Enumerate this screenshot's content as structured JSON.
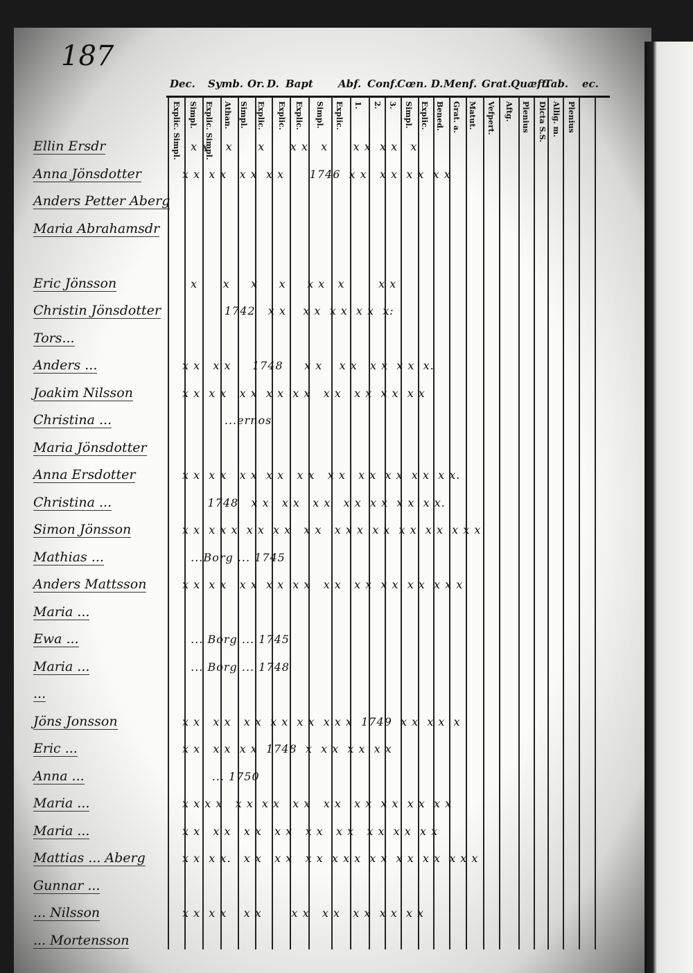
{
  "page_number": "187",
  "header": {
    "groups": [
      "Dec.",
      "Symb.",
      "Or.",
      "D.",
      "Bapt",
      "Abf.",
      "Conf.",
      "Cœn. D.",
      "Menf.",
      "Grat.",
      "Quæft.",
      "Tab.",
      "ec."
    ],
    "subcolumns": [
      "Explic. Simpl.",
      "Simpl.",
      "Explic. Simpl.",
      "Athan.",
      "Simpl.",
      "Explic.",
      "Explic.",
      "Explic.",
      "Simpl.",
      "Explic.",
      "1.",
      "2.",
      "3.",
      "Simpl.",
      "Explic.",
      "Bened.",
      "Grat. a.",
      "Matut.",
      "Vefpert.",
      "Aftg.",
      "Plenius",
      "Dicta S.S.",
      "Allig. m.",
      "Plenius"
    ]
  },
  "rows": [
    {
      "name": "Ellin Ersdr",
      "marks": "  x x    x      x      x x   x      x x  x x   x"
    },
    {
      "name": "Anna Jönsdotter",
      "marks": "x x  x x   x x  x x      1746  x x   x x  x x  x x"
    },
    {
      "name": "Anders Petter Aberg",
      "marks": ""
    },
    {
      "name": "Maria Abrahamsdr",
      "marks": ""
    },
    {
      "name": "",
      "marks": ""
    },
    {
      "name": "Eric Jönsson",
      "marks": "  x      x     x     x     x x   x        x x"
    },
    {
      "name": "Christin Jönsdotter",
      "marks": "          1742   x x    x x  x x  x x  x:"
    },
    {
      "name": "Tors...",
      "marks": ""
    },
    {
      "name": "Anders ...",
      "marks": "x x   x x     1748     x x    x x   x x  x x  x."
    },
    {
      "name": "Joakim Nilsson",
      "marks": "x x  x x   x x  x x  x x   x x   x x  x x  x x"
    },
    {
      "name": "Christina ...",
      "marks": "          ...ernos"
    },
    {
      "name": "Maria Jönsdotter",
      "marks": ""
    },
    {
      "name": "Anna Ersdotter",
      "marks": "x x  x x   x x  x x   x x   x x   x x  x x  x x  x x."
    },
    {
      "name": "Christina ...",
      "marks": "      1748   x x   x x   x x   x x  x x  x x  x x."
    },
    {
      "name": "Simon Jönsson",
      "marks": "x x  x x x  x x  x x   x x   x x x  x x  x x  x x  x x x"
    },
    {
      "name": "Mathias ...",
      "marks": "  ...Borg ... 1745"
    },
    {
      "name": "Anders Mattsson",
      "marks": "x x  x x   x x  x x  x x   x x   x x  x x  x x  x x x"
    },
    {
      "name": "Maria ...",
      "marks": ""
    },
    {
      "name": "Ewa ...",
      "marks": "  ... Borg ... 1745"
    },
    {
      "name": "Maria ...",
      "marks": "  ... Borg ... 1748"
    },
    {
      "name": "...",
      "marks": ""
    },
    {
      "name": "Jöns Jonsson",
      "marks": "x x   x x   x x  x x  x x  x x x  1749  x x  x x  x"
    },
    {
      "name": "Eric ...",
      "marks": "x x   x x  x x  1748  x  x x  x x  x x"
    },
    {
      "name": "Anna ...",
      "marks": "       ... 1750"
    },
    {
      "name": "Maria ...",
      "marks": "x x x x   x x  x x   x x   x x   x x  x x  x x  x x"
    },
    {
      "name": "Maria ...",
      "marks": "x x   x x   x x   x x   x x   x x   x x  x x  x x"
    },
    {
      "name": "Mattias ... Aberg",
      "marks": "x x  x x.   x x   x x   x x  x x x  x x  x x  x x  x x x"
    },
    {
      "name": "Gunnar ...",
      "marks": ""
    },
    {
      "name": "... Nilsson",
      "marks": "x x  x x    x x       x x   x x   x x  x x  x x"
    },
    {
      "name": "... Mortensson",
      "marks": ""
    }
  ]
}
